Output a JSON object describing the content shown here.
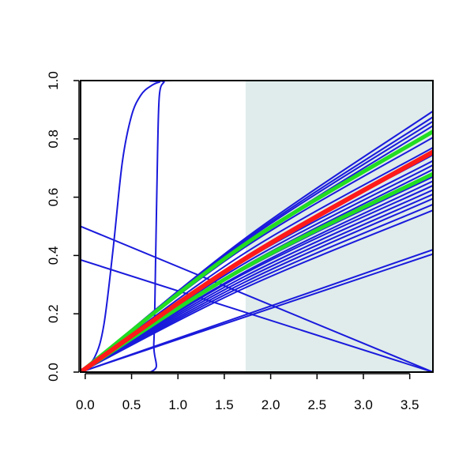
{
  "chart_data": {
    "type": "line",
    "title": "",
    "xlabel": "",
    "ylabel": "",
    "xlim": [
      -0.05,
      3.75
    ],
    "ylim": [
      0,
      1
    ],
    "x_ticks": [
      0.0,
      0.5,
      1.0,
      1.5,
      2.0,
      2.5,
      3.0,
      3.5
    ],
    "x_tick_labels": [
      "0.0",
      "0.5",
      "1.0",
      "1.5",
      "2.0",
      "2.5",
      "3.0",
      "3.5"
    ],
    "y_ticks": [
      0.0,
      0.2,
      0.4,
      0.6,
      0.8,
      1.0
    ],
    "y_tick_labels": [
      "0.0",
      "0.2",
      "0.4",
      "0.6",
      "0.8",
      "1.0"
    ],
    "grid": false,
    "legend": "none",
    "shaded_region": {
      "x_from": 1.73,
      "x_to": 3.75,
      "color": "#dfeceb"
    },
    "colors": {
      "blue": "#1a1adc",
      "red": "#ff1a1a",
      "green": "#22dd22"
    },
    "series": [
      {
        "color": "blue",
        "width": 2,
        "points": [
          [
            -0.05,
            0
          ],
          [
            0.1,
            0.05
          ],
          [
            0.2,
            0.16
          ],
          [
            0.3,
            0.42
          ],
          [
            0.4,
            0.72
          ],
          [
            0.5,
            0.88
          ],
          [
            0.6,
            0.95
          ],
          [
            0.7,
            0.98
          ],
          [
            0.8,
            0.995
          ],
          [
            0.95,
            1.0
          ],
          [
            3.75,
            1.0
          ]
        ]
      },
      {
        "color": "blue",
        "width": 2,
        "points": [
          [
            -0.05,
            0
          ],
          [
            0.7,
            0.0
          ],
          [
            0.74,
            0.1
          ],
          [
            0.76,
            0.4
          ],
          [
            0.78,
            0.75
          ],
          [
            0.8,
            0.95
          ],
          [
            0.85,
            0.995
          ],
          [
            0.9,
            1.0
          ],
          [
            3.75,
            1.0
          ]
        ]
      },
      {
        "color": "blue",
        "width": 2,
        "points": [
          [
            -0.05,
            0.5
          ],
          [
            3.75,
            0.0
          ]
        ]
      },
      {
        "color": "blue",
        "width": 2,
        "points": [
          [
            -0.05,
            0.385
          ],
          [
            3.75,
            0.0
          ]
        ]
      },
      {
        "color": "blue",
        "width": 2,
        "points": [
          [
            -0.05,
            0
          ],
          [
            3.75,
            0.42
          ]
        ]
      },
      {
        "color": "blue",
        "width": 2,
        "points": [
          [
            -0.05,
            0
          ],
          [
            3.75,
            0.405
          ]
        ]
      },
      {
        "color": "blue",
        "width": 2,
        "points": [
          [
            -0.05,
            0
          ],
          [
            1.73,
            0.46
          ],
          [
            3.75,
            0.895
          ]
        ]
      },
      {
        "color": "blue",
        "width": 2,
        "points": [
          [
            -0.05,
            0
          ],
          [
            1.73,
            0.455
          ],
          [
            3.75,
            0.875
          ]
        ]
      },
      {
        "color": "blue",
        "width": 2,
        "points": [
          [
            -0.05,
            0
          ],
          [
            1.73,
            0.45
          ],
          [
            3.75,
            0.86
          ]
        ]
      },
      {
        "color": "blue",
        "width": 2,
        "points": [
          [
            -0.05,
            0
          ],
          [
            1.73,
            0.44
          ],
          [
            3.75,
            0.845
          ]
        ]
      },
      {
        "color": "blue",
        "width": 2,
        "points": [
          [
            -0.05,
            0
          ],
          [
            1.73,
            0.43
          ],
          [
            3.75,
            0.805
          ]
        ]
      },
      {
        "color": "blue",
        "width": 2,
        "points": [
          [
            -0.05,
            0
          ],
          [
            1.73,
            0.41
          ],
          [
            3.75,
            0.77
          ]
        ]
      },
      {
        "color": "blue",
        "width": 2,
        "points": [
          [
            -0.05,
            0
          ],
          [
            1.73,
            0.395
          ],
          [
            3.75,
            0.745
          ]
        ]
      },
      {
        "color": "blue",
        "width": 2,
        "points": [
          [
            -0.05,
            0
          ],
          [
            1.73,
            0.385
          ],
          [
            3.75,
            0.725
          ]
        ]
      },
      {
        "color": "blue",
        "width": 2,
        "points": [
          [
            -0.05,
            0
          ],
          [
            1.73,
            0.375
          ],
          [
            3.75,
            0.71
          ]
        ]
      },
      {
        "color": "blue",
        "width": 2,
        "points": [
          [
            -0.05,
            0
          ],
          [
            1.73,
            0.365
          ],
          [
            3.75,
            0.695
          ]
        ]
      },
      {
        "color": "blue",
        "width": 2,
        "points": [
          [
            -0.05,
            0
          ],
          [
            1.73,
            0.355
          ],
          [
            3.75,
            0.67
          ]
        ]
      },
      {
        "color": "blue",
        "width": 2,
        "points": [
          [
            -0.05,
            0
          ],
          [
            1.73,
            0.345
          ],
          [
            3.75,
            0.655
          ]
        ]
      },
      {
        "color": "blue",
        "width": 2,
        "points": [
          [
            -0.05,
            0
          ],
          [
            1.73,
            0.34
          ],
          [
            3.75,
            0.64
          ]
        ]
      },
      {
        "color": "blue",
        "width": 2,
        "points": [
          [
            -0.05,
            0
          ],
          [
            1.73,
            0.33
          ],
          [
            3.75,
            0.625
          ]
        ]
      },
      {
        "color": "blue",
        "width": 2,
        "points": [
          [
            -0.05,
            0
          ],
          [
            1.73,
            0.32
          ],
          [
            3.75,
            0.61
          ]
        ]
      },
      {
        "color": "blue",
        "width": 2,
        "points": [
          [
            -0.05,
            0
          ],
          [
            1.73,
            0.31
          ],
          [
            3.75,
            0.595
          ]
        ]
      },
      {
        "color": "blue",
        "width": 2,
        "points": [
          [
            -0.05,
            0
          ],
          [
            1.73,
            0.3
          ],
          [
            3.75,
            0.575
          ]
        ]
      },
      {
        "color": "blue",
        "width": 2,
        "points": [
          [
            -0.05,
            0
          ],
          [
            1.73,
            0.29
          ],
          [
            3.75,
            0.555
          ]
        ]
      },
      {
        "color": "green",
        "width": 5,
        "points": [
          [
            -0.05,
            0
          ],
          [
            1.73,
            0.44
          ],
          [
            3.75,
            0.825
          ]
        ]
      },
      {
        "color": "green",
        "width": 5,
        "points": [
          [
            -0.05,
            0
          ],
          [
            1.73,
            0.36
          ],
          [
            3.75,
            0.68
          ]
        ]
      },
      {
        "color": "red",
        "width": 6,
        "points": [
          [
            -0.05,
            0
          ],
          [
            1.73,
            0.39
          ],
          [
            3.75,
            0.755
          ]
        ]
      }
    ]
  }
}
